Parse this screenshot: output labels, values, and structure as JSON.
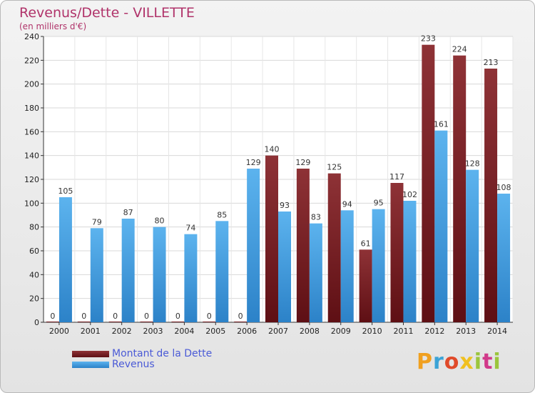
{
  "title": "Revenus/Dette - VILLETTE",
  "subtitle": "(en milliers d'€)",
  "legend": {
    "debt_label": "Montant de la Dette",
    "revenue_label": "Revenus"
  },
  "logo": {
    "text": "Proxiti",
    "letters": [
      "P",
      "r",
      "o",
      "x",
      "i",
      "t",
      "i"
    ]
  },
  "colors": {
    "debt": "#7a1e22",
    "revenue": "#4aa3e2",
    "title": "#b0336a",
    "legend_text": "#4a5ad6"
  },
  "chart_data": {
    "type": "bar",
    "categories": [
      "2000",
      "2001",
      "2002",
      "2003",
      "2004",
      "2005",
      "2006",
      "2007",
      "2008",
      "2009",
      "2010",
      "2011",
      "2012",
      "2013",
      "2014"
    ],
    "series": [
      {
        "name": "Montant de la Dette",
        "values": [
          0,
          0,
          0,
          0,
          0,
          0,
          0,
          140,
          129,
          125,
          61,
          117,
          233,
          224,
          213
        ]
      },
      {
        "name": "Revenus",
        "values": [
          105,
          79,
          87,
          80,
          74,
          85,
          129,
          93,
          83,
          94,
          95,
          102,
          161,
          128,
          108
        ]
      }
    ],
    "ylim": [
      0,
      240
    ],
    "yticks": [
      0,
      20,
      40,
      60,
      80,
      100,
      120,
      140,
      160,
      180,
      200,
      220,
      240
    ],
    "grid": true
  }
}
